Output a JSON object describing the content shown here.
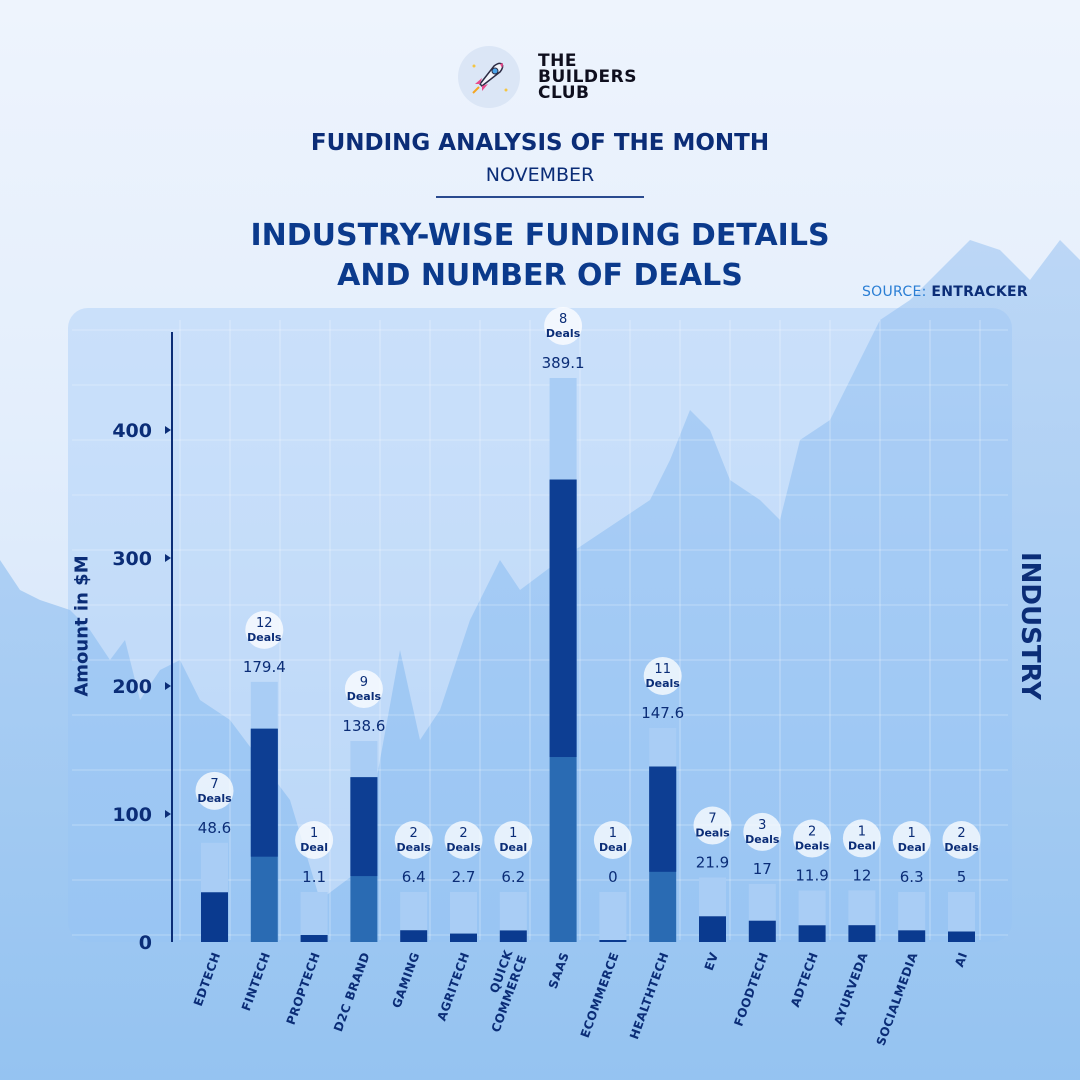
{
  "brand": {
    "line1": "THE",
    "line2": "BUILDERS",
    "line3": "CLUB"
  },
  "header": {
    "title": "FUNDING ANALYSIS OF THE MONTH",
    "month": "NOVEMBER",
    "heading_line1": "INDUSTRY-WISE FUNDING DETAILS",
    "heading_line2": "AND NUMBER OF DEALS",
    "source_label": "SOURCE:",
    "source_value": "ENTRACKER"
  },
  "colors": {
    "dark_navy": "#0b2d77",
    "bar_dark": "#0a3a8f",
    "bar_light": "#a9cdf5",
    "bar_mid": "#2a6bb3"
  },
  "chart_data": {
    "type": "bar",
    "title": "INDUSTRY-WISE FUNDING DETAILS AND NUMBER OF DEALS",
    "xlabel": "INDUSTRY",
    "ylabel": "Amount in $M",
    "ylim": [
      0,
      450
    ],
    "yticks": [
      0,
      100,
      200,
      300,
      400
    ],
    "grid": true,
    "categories": [
      "EDTECH",
      "FINTECH",
      "PROPTECH",
      "D2C BRAND",
      "GAMING",
      "AGRITECH",
      "QUICK COMMERCE",
      "SAAS",
      "ECOMMERCE",
      "HEALTHTECH",
      "EV",
      "FOODTECH",
      "ADTECH",
      "AYURVEDA",
      "SOCIALMEDIA",
      "AI"
    ],
    "category_lines": [
      [
        "EDTECH"
      ],
      [
        "FINTECH"
      ],
      [
        "PROPTECH"
      ],
      [
        "D2C BRAND"
      ],
      [
        "GAMING"
      ],
      [
        "AGRITECH"
      ],
      [
        "QUICK",
        "COMMERCE"
      ],
      [
        "SAAS"
      ],
      [
        "ECOMMERCE"
      ],
      [
        "HEALTHTECH"
      ],
      [
        "EV"
      ],
      [
        "FOODTECH"
      ],
      [
        "ADTECH"
      ],
      [
        "AYURVEDA"
      ],
      [
        "SOCIALMEDIA"
      ],
      [
        "AI"
      ]
    ],
    "value_labels": [
      "48.6",
      "179.4",
      "1.1",
      "138.6",
      "6.4",
      "2.7",
      "6.2",
      "389.1",
      "0",
      "147.6",
      "21.9",
      "17",
      "11.9",
      "12",
      "6.3",
      "5"
    ],
    "values": [
      48.6,
      179.4,
      1.1,
      138.6,
      6.4,
      2.7,
      6.2,
      389.1,
      0,
      147.6,
      21.9,
      17,
      11.9,
      12,
      6.3,
      5
    ],
    "deals": [
      7,
      12,
      1,
      9,
      2,
      2,
      1,
      8,
      1,
      11,
      7,
      3,
      2,
      1,
      1,
      2
    ],
    "deal_labels": [
      "Deals",
      "Deals",
      "Deal",
      "Deals",
      "Deals",
      "Deals",
      "Deal",
      "Deals",
      "Deal",
      "Deals",
      "Deals",
      "Deals",
      "Deals",
      "Deal",
      "Deal",
      "Deals"
    ]
  }
}
